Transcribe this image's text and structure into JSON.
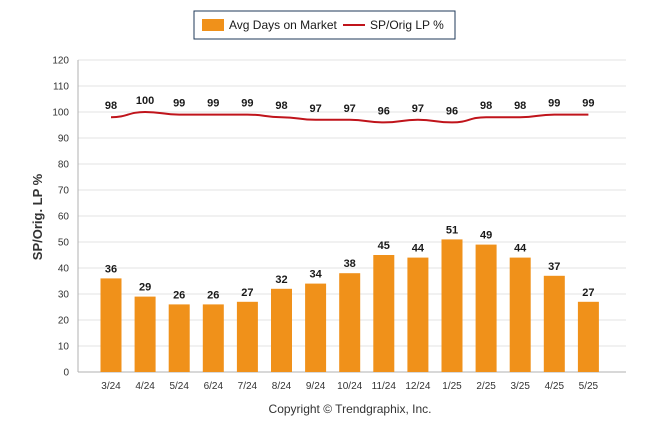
{
  "legend": {
    "bar_label": "Avg Days on Market",
    "line_label": "SP/Orig LP %"
  },
  "footer": {
    "copyright": "Copyright © Trendgraphix, Inc."
  },
  "chart_data": {
    "type": "bar",
    "categories": [
      "3/24",
      "4/24",
      "5/24",
      "6/24",
      "7/24",
      "8/24",
      "9/24",
      "10/24",
      "11/24",
      "12/24",
      "1/25",
      "2/25",
      "3/25",
      "4/25",
      "5/25"
    ],
    "series": [
      {
        "name": "Avg Days on Market",
        "type": "bar",
        "color": "#f0911a",
        "values": [
          36,
          29,
          26,
          26,
          27,
          32,
          34,
          38,
          45,
          44,
          51,
          49,
          44,
          37,
          27
        ]
      },
      {
        "name": "SP/Orig LP %",
        "type": "line",
        "color": "#c0141b",
        "values": [
          98,
          100,
          99,
          99,
          99,
          98,
          97,
          97,
          96,
          97,
          96,
          98,
          98,
          99,
          99
        ]
      }
    ],
    "ylabel": "SP/Orig. LP %",
    "ylim": [
      0,
      120
    ],
    "yticks": [
      0,
      10,
      20,
      30,
      40,
      50,
      60,
      70,
      80,
      90,
      100,
      110,
      120
    ],
    "grid": true,
    "legend_position": "top-center"
  }
}
